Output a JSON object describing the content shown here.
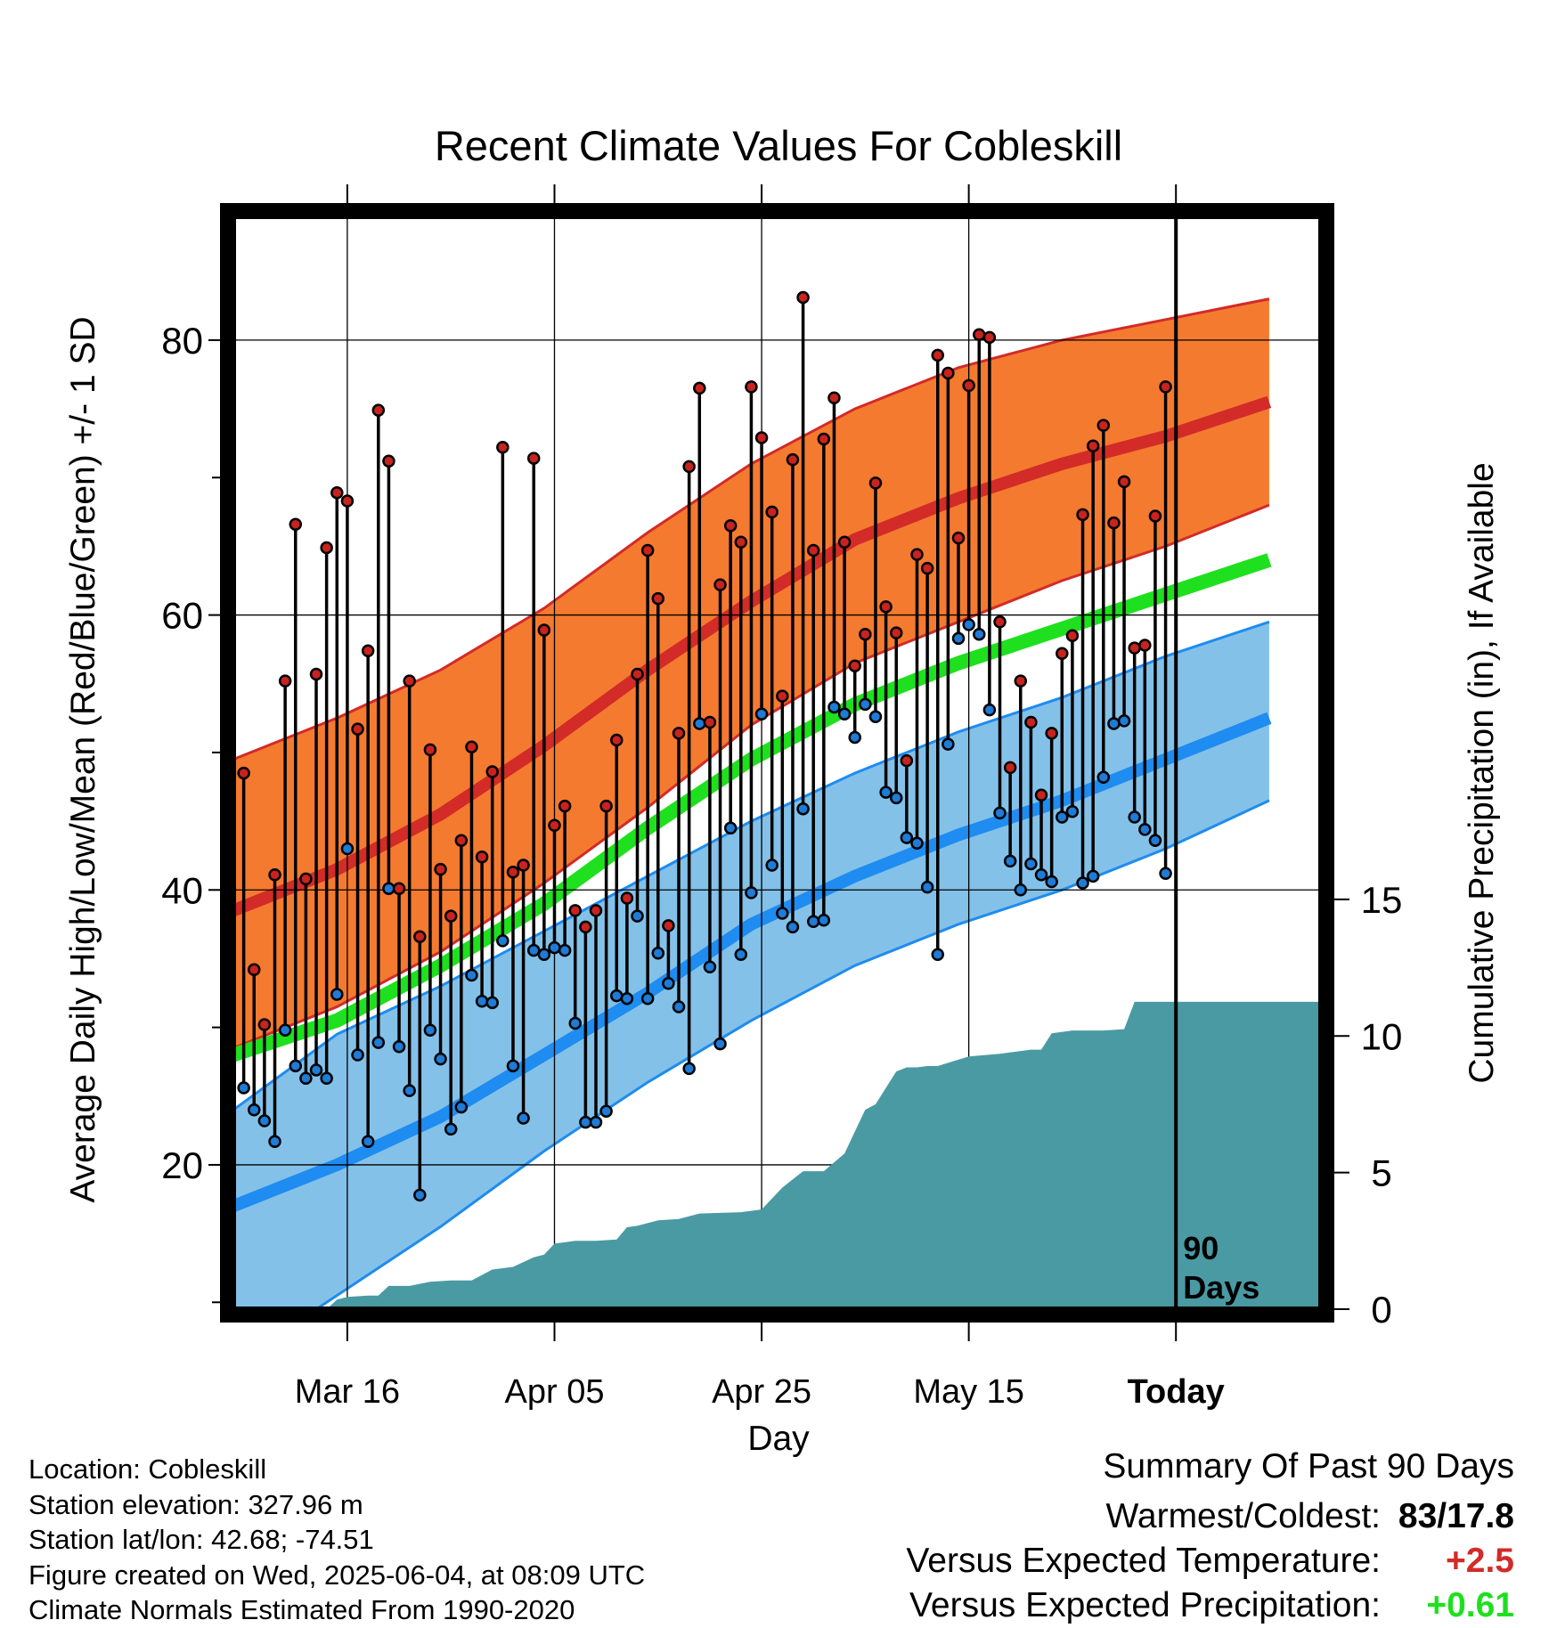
{
  "chart_data": {
    "type": "line",
    "title": "Recent Climate Values For Cobleskill",
    "xlabel": "Day",
    "ylabel": "Average Daily High/Low/Mean (Red/Blue/Green) +/- 1 SD",
    "y2label": "Cumulative Precipitation (in), If Available",
    "x_tick_labels": [
      "Mar 16",
      "Apr 05",
      "Apr 25",
      "May 15",
      "Today"
    ],
    "x_tick_days": [
      11,
      31,
      51,
      71,
      91
    ],
    "x_range_days": [
      0,
      105
    ],
    "ylim": [
      9.5,
      89
    ],
    "y_ticks": [
      20,
      40,
      60,
      80
    ],
    "y_minor_ticks": [
      10,
      30,
      50,
      70
    ],
    "y2lim": [
      0,
      40
    ],
    "y2_ticks": [
      0,
      5,
      10,
      15
    ],
    "today_label": "90\nDays",
    "colors": {
      "high_band": "#f47a30",
      "high_mean": "#d22b28",
      "low_band": "#84c1e8",
      "low_mean": "#1e8cf0",
      "mean_line": "#1ee01e",
      "precip": "#4a9aa4",
      "high_point": "#c8231e",
      "low_point": "#1e7bd6"
    },
    "normals": {
      "x": [
        0,
        10,
        20,
        30,
        40,
        50,
        60,
        70,
        80,
        90,
        100
      ],
      "high_mean": [
        38.5,
        41.5,
        45.5,
        50.5,
        56.0,
        61.0,
        65.5,
        68.5,
        71.0,
        73.0,
        75.5
      ],
      "high_plus_sd": [
        49.5,
        52.5,
        56.0,
        60.5,
        66.0,
        71.0,
        75.0,
        78.0,
        80.0,
        81.5,
        83.0
      ],
      "high_minus_sd": [
        28.5,
        31.5,
        35.5,
        40.5,
        46.0,
        52.0,
        56.5,
        59.5,
        62.5,
        65.0,
        68.0
      ],
      "low_mean": [
        17.0,
        20.0,
        23.5,
        28.0,
        32.5,
        37.5,
        41.0,
        44.0,
        46.5,
        49.5,
        52.5
      ],
      "low_plus_sd": [
        24.0,
        29.5,
        33.0,
        37.0,
        41.0,
        45.0,
        48.5,
        51.5,
        54.0,
        57.0,
        59.5
      ],
      "low_minus_sd": [
        5.5,
        10.5,
        15.5,
        21.0,
        26.0,
        30.5,
        34.5,
        37.5,
        40.0,
        43.0,
        46.5
      ],
      "mean_line": [
        28.0,
        30.5,
        34.5,
        39.0,
        44.5,
        49.5,
        53.5,
        56.5,
        59.0,
        61.5,
        64.0
      ]
    },
    "series": [
      {
        "name": "Daily High",
        "x": [
          1,
          2,
          3,
          4,
          5,
          6,
          7,
          8,
          9,
          10,
          11,
          12,
          13,
          14,
          15,
          16,
          17,
          18,
          19,
          20,
          21,
          22,
          23,
          24,
          25,
          26,
          27,
          28,
          29,
          30,
          31,
          32,
          33,
          34,
          35,
          36,
          37,
          38,
          39,
          40,
          41,
          42,
          43,
          44,
          45,
          46,
          47,
          48,
          49,
          50,
          51,
          52,
          53,
          54,
          55,
          56,
          57,
          58,
          59,
          60,
          61,
          62,
          63,
          64,
          65,
          66,
          67,
          68,
          69,
          70,
          71,
          72,
          73,
          74,
          75,
          76,
          77,
          78,
          79,
          80,
          81,
          82,
          83,
          84,
          85,
          86,
          87,
          88,
          89,
          90
        ],
        "values": [
          48.5,
          34.2,
          30.2,
          41.1,
          55.2,
          66.6,
          40.8,
          55.7,
          64.9,
          68.9,
          68.3,
          51.7,
          57.4,
          74.9,
          71.2,
          40.1,
          55.2,
          36.6,
          50.2,
          41.5,
          38.1,
          43.6,
          50.4,
          42.4,
          48.6,
          72.2,
          41.3,
          41.8,
          71.4,
          58.9,
          44.7,
          46.1,
          38.5,
          37.3,
          38.5,
          46.1,
          50.9,
          39.4,
          55.7,
          64.7,
          61.2,
          37.4,
          51.4,
          70.8,
          76.5,
          52.2,
          62.2,
          66.5,
          65.3,
          76.6,
          72.9,
          67.5,
          54.1,
          71.3,
          83.1,
          64.7,
          72.8,
          75.8,
          65.3,
          56.3,
          58.6,
          69.6,
          60.6,
          58.7,
          49.4,
          64.4,
          63.4,
          78.9,
          77.6,
          65.6,
          76.7,
          80.4,
          80.2,
          59.5,
          48.9,
          55.2,
          52.2,
          46.9,
          51.4,
          57.2,
          58.5,
          67.3,
          72.3,
          73.8,
          66.7,
          69.7,
          57.6,
          57.8,
          67.2,
          76.6
        ]
      },
      {
        "name": "Daily Low",
        "x": [
          1,
          2,
          3,
          4,
          5,
          6,
          7,
          8,
          9,
          10,
          11,
          12,
          13,
          14,
          15,
          16,
          17,
          18,
          19,
          20,
          21,
          22,
          23,
          24,
          25,
          26,
          27,
          28,
          29,
          30,
          31,
          32,
          33,
          34,
          35,
          36,
          37,
          38,
          39,
          40,
          41,
          42,
          43,
          44,
          45,
          46,
          47,
          48,
          49,
          50,
          51,
          52,
          53,
          54,
          55,
          56,
          57,
          58,
          59,
          60,
          61,
          62,
          63,
          64,
          65,
          66,
          67,
          68,
          69,
          70,
          71,
          72,
          73,
          74,
          75,
          76,
          77,
          78,
          79,
          80,
          81,
          82,
          83,
          84,
          85,
          86,
          87,
          88,
          89,
          90
        ],
        "values": [
          25.6,
          24.0,
          23.2,
          21.7,
          29.8,
          27.2,
          26.3,
          26.9,
          26.3,
          32.4,
          43.0,
          28.0,
          21.7,
          28.9,
          40.1,
          28.6,
          25.4,
          17.8,
          29.8,
          27.7,
          22.6,
          24.2,
          33.8,
          31.9,
          31.8,
          36.3,
          27.2,
          23.4,
          35.6,
          35.3,
          35.8,
          35.6,
          30.3,
          23.1,
          23.1,
          23.9,
          32.3,
          32.1,
          38.1,
          32.1,
          35.4,
          33.2,
          31.5,
          27.0,
          52.1,
          34.4,
          28.8,
          44.5,
          35.3,
          39.8,
          52.8,
          41.8,
          38.3,
          37.3,
          45.9,
          37.7,
          37.8,
          53.3,
          52.8,
          51.1,
          53.5,
          52.6,
          47.1,
          46.7,
          43.8,
          43.4,
          40.2,
          35.3,
          50.6,
          58.3,
          59.3,
          58.6,
          53.1,
          45.6,
          42.1,
          40.0,
          41.9,
          41.1,
          40.6,
          45.3,
          45.7,
          40.5,
          41.0,
          48.2,
          52.1,
          52.3,
          45.3,
          44.4,
          43.6,
          41.2
        ]
      },
      {
        "name": "Cumulative Precipitation",
        "x": [
          0,
          9,
          10,
          11,
          13,
          14,
          15,
          17,
          19,
          21,
          23,
          25,
          27,
          29,
          30,
          31,
          33,
          35,
          37,
          38,
          39,
          41,
          43,
          45,
          49,
          50,
          51,
          53,
          55,
          57,
          59,
          60,
          61,
          62,
          64,
          65,
          66,
          67,
          68,
          71,
          74,
          77,
          78,
          79,
          81,
          84,
          86,
          87,
          91,
          105
        ],
        "values": [
          0,
          0,
          0.35,
          0.45,
          0.5,
          0.5,
          0.85,
          0.85,
          1.0,
          1.05,
          1.05,
          1.45,
          1.55,
          1.9,
          2.0,
          2.4,
          2.5,
          2.5,
          2.55,
          3.0,
          3.05,
          3.25,
          3.3,
          3.5,
          3.55,
          3.6,
          3.65,
          4.45,
          5.05,
          5.05,
          5.7,
          6.5,
          7.3,
          7.5,
          8.7,
          8.85,
          8.85,
          8.9,
          8.9,
          9.25,
          9.35,
          9.5,
          9.5,
          10.1,
          10.2,
          10.2,
          10.25,
          11.25,
          11.25,
          11.25
        ]
      }
    ]
  },
  "footer": {
    "location": "Location: Cobleskill",
    "elevation": "Station elevation: 327.96 m",
    "latlon": "Station lat/lon: 42.68; -74.51",
    "created": "Figure created on Wed, 2025-06-04, at 08:09 UTC",
    "normals": "Climate Normals Estimated From 1990-2020"
  },
  "summary": {
    "title": "Summary Of Past 90 Days",
    "warmest_label": "Warmest/Coldest:",
    "warmest_value": "83/17.8",
    "temp_label": "Versus Expected Temperature:",
    "temp_value": "+2.5",
    "temp_color": "#d22b28",
    "precip_label": "Versus Expected Precipitation:",
    "precip_value": "+0.61",
    "precip_color": "#1ee01e"
  }
}
